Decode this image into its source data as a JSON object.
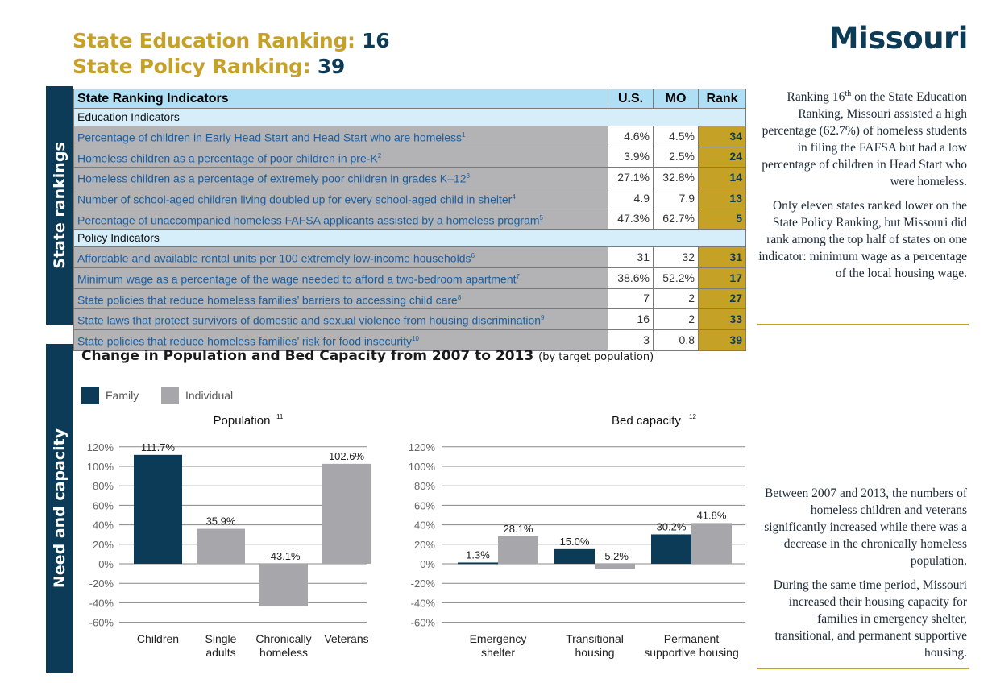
{
  "header": {
    "edu_label": "State Education Ranking:",
    "edu_rank": "16",
    "policy_label": "State Policy Ranking:",
    "policy_rank": "39",
    "state": "Missouri"
  },
  "rankings": {
    "side_label": "State rankings",
    "title": "State Ranking Indicators",
    "col_us": "U.S.",
    "col_mo": "MO",
    "col_rank": "Rank",
    "education_label": "Education Indicators",
    "education": [
      {
        "label": "Percentage of children in Early Head Start and Head Start who are homeless",
        "note": "1",
        "us": "4.6%",
        "mo": "4.5%",
        "rank": "34"
      },
      {
        "label": "Homeless children as a percentage of poor children in pre-K",
        "note": "2",
        "us": "3.9%",
        "mo": "2.5%",
        "rank": "24"
      },
      {
        "label": "Homeless children as a percentage of extremely poor children in grades K–12",
        "note": "3",
        "us": "27.1%",
        "mo": "32.8%",
        "rank": "14"
      },
      {
        "label": "Number of school-aged children living doubled up for every school-aged child in shelter",
        "note": "4",
        "us": "4.9",
        "mo": "7.9",
        "rank": "13"
      },
      {
        "label": "Percentage of unaccompanied homeless FAFSA applicants assisted by a homeless program",
        "note": "5",
        "us": "47.3%",
        "mo": "62.7%",
        "rank": "5"
      }
    ],
    "policy_label": "Policy Indicators",
    "policy": [
      {
        "label": "Affordable and available rental units per 100 extremely low-income households",
        "note": "6",
        "us": "31",
        "mo": "32",
        "rank": "31"
      },
      {
        "label": "Minimum wage as a percentage of the wage needed to afford a two-bedroom apartment",
        "note": "7",
        "us": "38.6%",
        "mo": "52.2%",
        "rank": "17"
      },
      {
        "label": "State policies that reduce homeless families’ barriers to accessing child care",
        "note": "8",
        "us": "7",
        "mo": "2",
        "rank": "27"
      },
      {
        "label": "State laws that protect survivors of domestic and sexual violence from housing discrimination",
        "note": "9",
        "us": "16",
        "mo": "2",
        "rank": "33"
      },
      {
        "label": "State policies that reduce homeless families’ risk for food insecurity",
        "note": "10",
        "us": "3",
        "mo": "0.8",
        "rank": "39"
      }
    ]
  },
  "side_text_top": [
    "Ranking 16th on the State Education Ranking, Missouri assisted a high percentage (62.7%) of homeless students in filing the FAFSA but had a low percentage of children in Head Start who were homeless.",
    "Only eleven states ranked lower on the State Policy Ranking, but Missouri did rank among the top half of states on one indicator: minimum wage as a percentage of the local housing wage."
  ],
  "side_text_bottom": [
    "Between 2007 and 2013, the numbers of homeless children and veterans significantly increased while there was a decrease in the chronically homeless population.",
    "During the same time period, Missouri increased their housing capacity for families in emergency shelter, transitional, and permanent supportive housing."
  ],
  "need": {
    "side_label": "Need and capacity",
    "title": "Change in Population and Bed Capacity from 2007 to 2013",
    "title_note": "(by target population)"
  },
  "chart_data": [
    {
      "type": "bar",
      "title": "Population",
      "note": "11",
      "ylim": [
        -60,
        120
      ],
      "ticks": [
        "120%",
        "100%",
        "80%",
        "60%",
        "40%",
        "20%",
        "0%",
        "-20%",
        "-40%",
        "-60%"
      ],
      "tick_values": [
        120,
        100,
        80,
        60,
        40,
        20,
        0,
        -20,
        -40,
        -60
      ],
      "categories": [
        "Children",
        "Single adults",
        "Chronically homeless",
        "Veterans"
      ],
      "bars": [
        {
          "value": 111.7,
          "label": "111.7%",
          "series": "Family"
        },
        {
          "value": 35.9,
          "label": "35.9%",
          "series": "Individual"
        },
        {
          "value": -43.1,
          "label": "-43.1%",
          "series": "Individual"
        },
        {
          "value": 102.6,
          "label": "102.6%",
          "series": "Individual"
        }
      ]
    },
    {
      "type": "bar",
      "title": "Bed capacity",
      "note": "12",
      "ylim": [
        -60,
        120
      ],
      "categories": [
        "Emergency shelter",
        "Transitional housing",
        "Permanent supportive housing"
      ],
      "series": [
        {
          "name": "Family",
          "values": [
            1.3,
            15.0,
            30.2
          ],
          "labels": [
            "1.3%",
            "15.0%",
            "30.2%"
          ]
        },
        {
          "name": "Individual",
          "values": [
            28.1,
            -5.2,
            41.8
          ],
          "labels": [
            "28.1%",
            "-5.2%",
            "41.8%"
          ]
        }
      ]
    }
  ],
  "legend": [
    {
      "name": "Family",
      "color": "#0b3b57"
    },
    {
      "name": "Individual",
      "color": "#a7a7ab"
    }
  ]
}
